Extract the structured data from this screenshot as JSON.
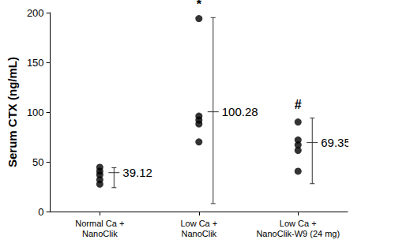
{
  "chart_data": {
    "type": "scatter",
    "y_label": "Serum CTX (ng/mL)",
    "categories": [
      "Normal Ca +\nNanoClik",
      "Low Ca +\nNanoClik",
      "Low Ca +\nNanoClik-W9 (24 mg)"
    ],
    "points": [
      [
        44.5,
        40.5,
        37,
        32,
        27.5
      ],
      [
        194,
        96,
        92,
        88,
        70
      ],
      [
        90,
        72,
        67,
        61.5,
        40.5
      ]
    ],
    "means": [
      39.12,
      100.28,
      69.35
    ],
    "error_low": [
      24,
      8,
      28
    ],
    "error_high": [
      44,
      195,
      94
    ],
    "annotations": [
      null,
      "*",
      "#"
    ],
    "ylim": [
      0,
      200
    ],
    "yticks": [
      0,
      50,
      100,
      150,
      200
    ],
    "color": "#000000",
    "marker": "circle",
    "data_labels": true,
    "grid": false
  }
}
